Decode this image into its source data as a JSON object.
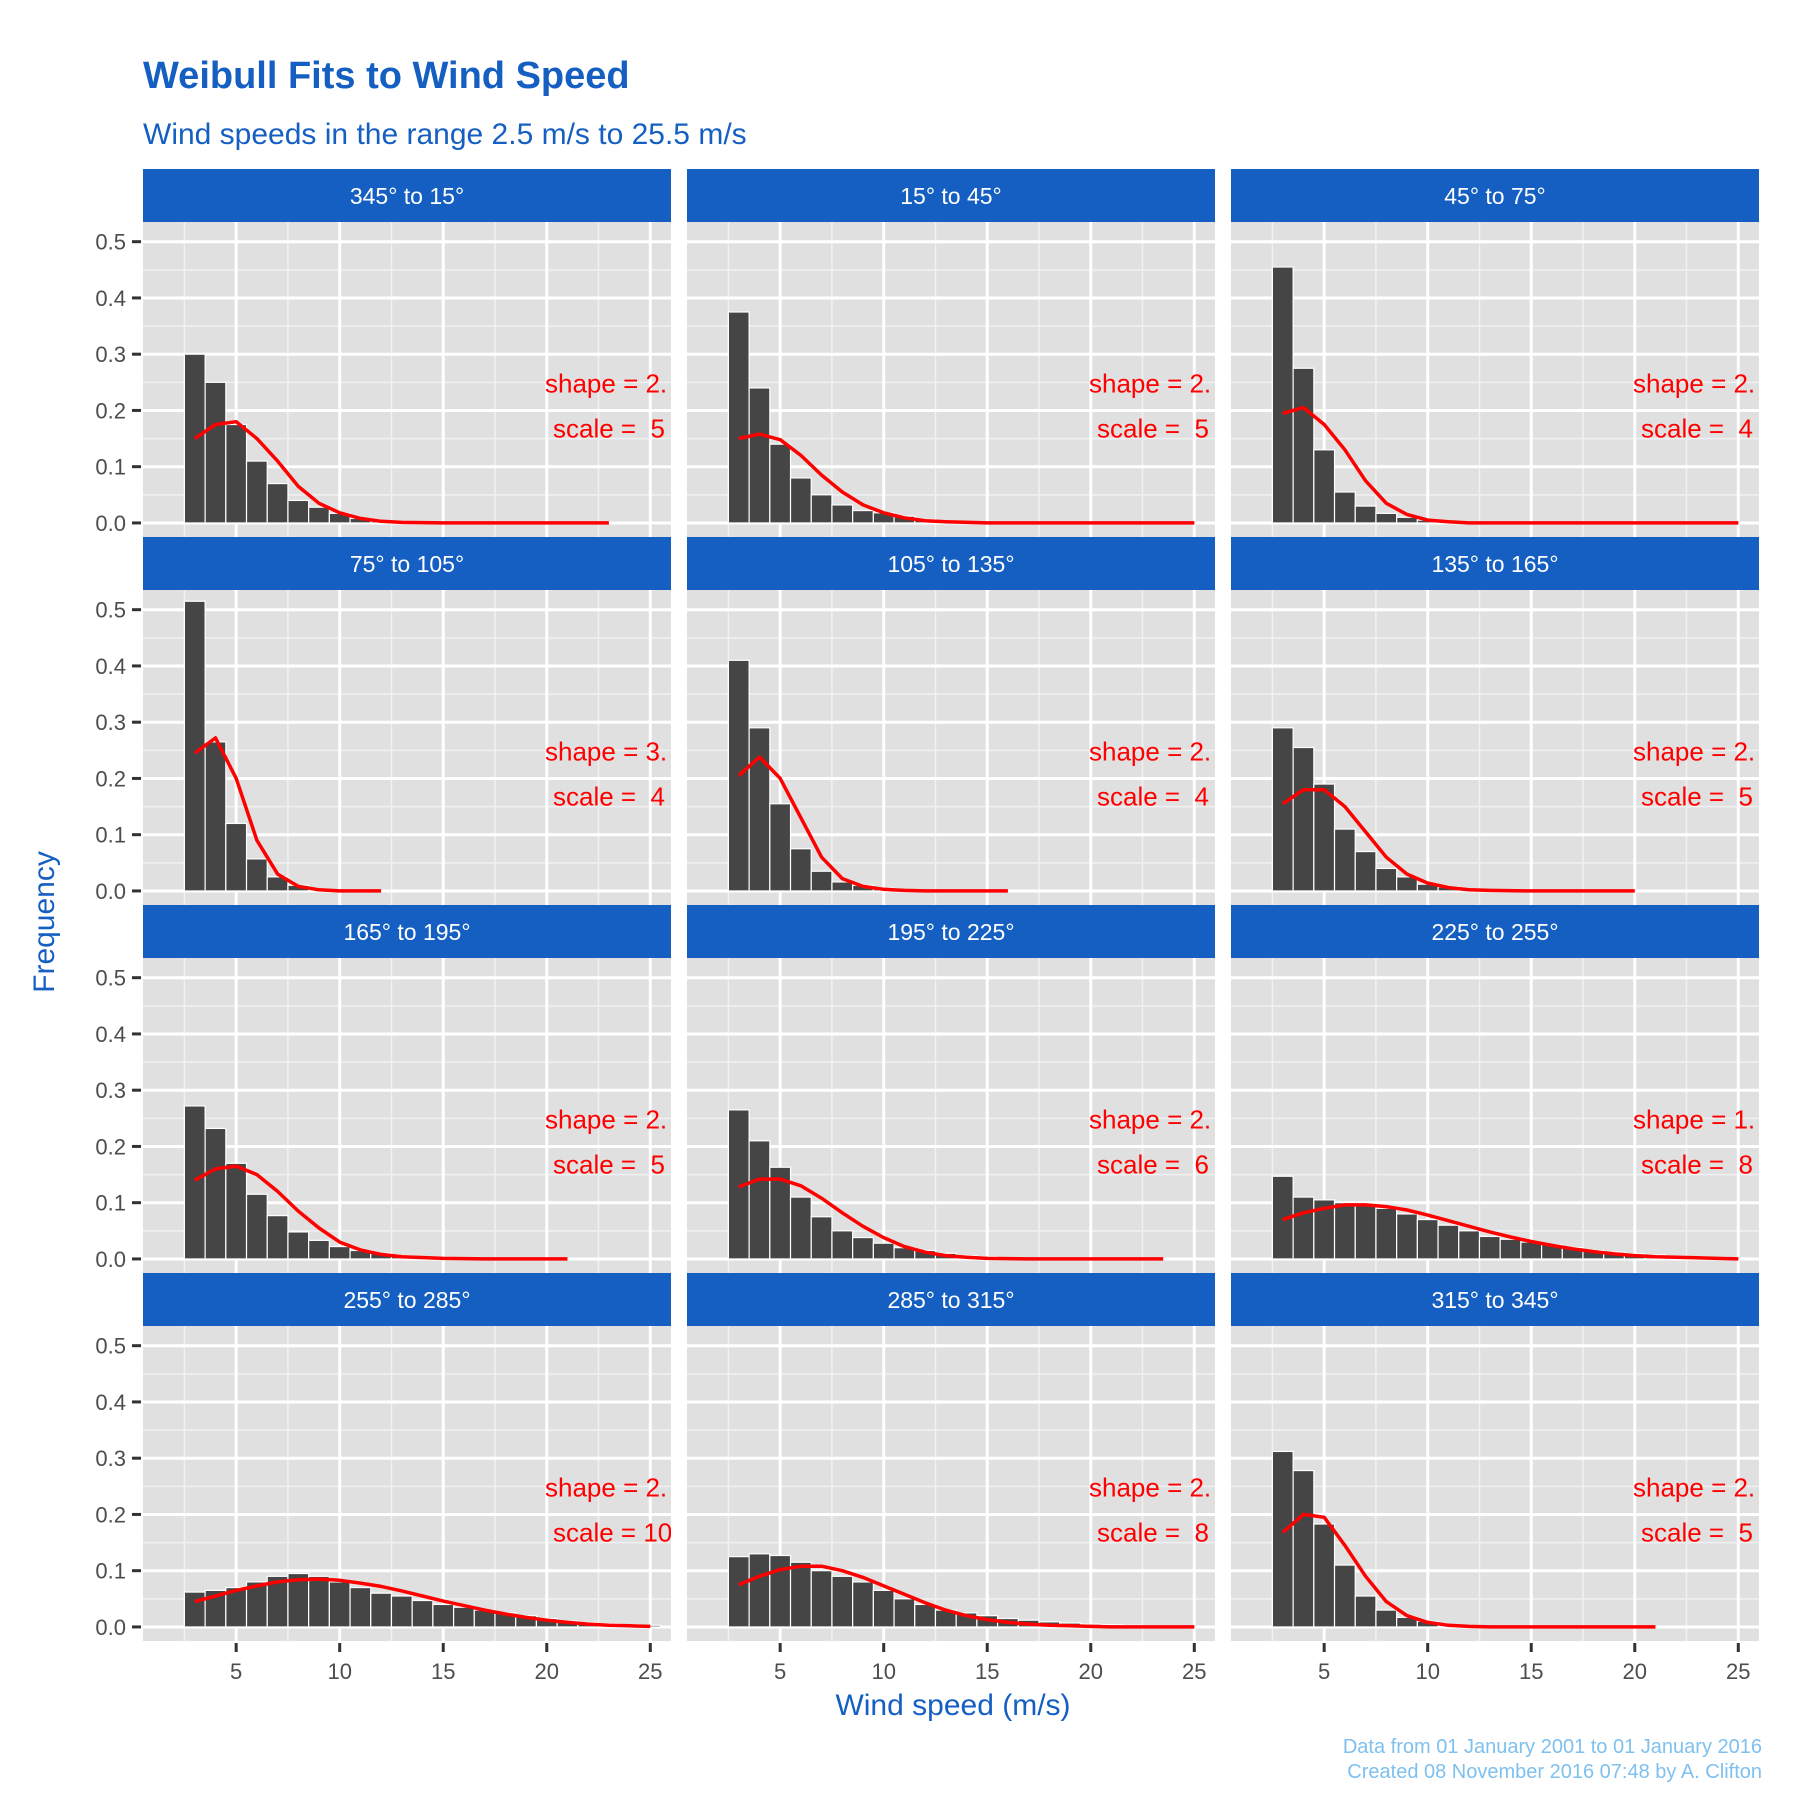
{
  "colors": {
    "accent": "#155fc2",
    "strip": "#155fc2",
    "panel": "#e0e0e0",
    "bar": "#454545",
    "fit": "#ff0000",
    "caption": "#7ec0ee"
  },
  "chart_data": {
    "type": "bar",
    "title": "Weibull Fits to Wind Speed",
    "subtitle": "Wind speeds in the range 2.5 m/s to 25.5 m/s",
    "xlabel": "Wind speed (m/s)",
    "ylabel": "Frequency",
    "xlim": [
      0.5,
      26
    ],
    "ylim": [
      -0.025,
      0.535
    ],
    "x_ticks": [
      5,
      10,
      15,
      20,
      25
    ],
    "x_tick_labels": [
      "5",
      "10",
      "15",
      "20",
      "25"
    ],
    "y_ticks": [
      0,
      0.1,
      0.2,
      0.3,
      0.4,
      0.5
    ],
    "y_tick_labels": [
      "0.0",
      "0.1",
      "0.2",
      "0.3",
      "0.4",
      "0.5"
    ],
    "grid": true,
    "legend": "none",
    "bin_width": 1,
    "caption": [
      "Data from 01 January 2001 to 01 January 2016",
      "Created 08 November 2016 07:48 by A. Clifton"
    ],
    "panels": [
      {
        "label": "345° to 15°",
        "shape_label": "shape = 2.",
        "scale_label": "scale =  5",
        "bins": [
          3,
          4,
          5,
          6,
          7,
          8,
          9,
          10,
          11,
          12
        ],
        "values": [
          0.3,
          0.25,
          0.175,
          0.11,
          0.07,
          0.04,
          0.028,
          0.017,
          0.008,
          0.003
        ],
        "fit_x": [
          3,
          4,
          5,
          6,
          7,
          8,
          9,
          10,
          11,
          12,
          13,
          15,
          17,
          19,
          21,
          23
        ],
        "fit_y": [
          0.15,
          0.175,
          0.18,
          0.15,
          0.11,
          0.065,
          0.035,
          0.018,
          0.008,
          0.003,
          0.001,
          0,
          0,
          0,
          0,
          0
        ]
      },
      {
        "label": "15° to 45°",
        "shape_label": "shape = 2.",
        "scale_label": "scale =  5",
        "bins": [
          3,
          4,
          5,
          6,
          7,
          8,
          9,
          10,
          11,
          12
        ],
        "values": [
          0.375,
          0.24,
          0.14,
          0.08,
          0.05,
          0.032,
          0.022,
          0.018,
          0.012,
          0.006
        ],
        "fit_x": [
          3,
          4,
          5,
          6,
          7,
          8,
          9,
          10,
          11,
          12,
          13,
          15,
          17,
          19,
          21,
          23,
          25
        ],
        "fit_y": [
          0.15,
          0.158,
          0.148,
          0.12,
          0.085,
          0.055,
          0.032,
          0.018,
          0.009,
          0.004,
          0.002,
          0,
          0,
          0,
          0,
          0,
          0
        ]
      },
      {
        "label": "45° to 75°",
        "shape_label": "shape = 2.",
        "scale_label": "scale =  4",
        "bins": [
          3,
          4,
          5,
          6,
          7,
          8,
          9,
          10
        ],
        "values": [
          0.455,
          0.275,
          0.13,
          0.055,
          0.03,
          0.017,
          0.01,
          0.005
        ],
        "fit_x": [
          3,
          4,
          5,
          6,
          7,
          8,
          9,
          10,
          11,
          12,
          13,
          15,
          17,
          19,
          21,
          23,
          25
        ],
        "fit_y": [
          0.195,
          0.205,
          0.175,
          0.13,
          0.075,
          0.035,
          0.015,
          0.005,
          0.002,
          0,
          0,
          0,
          0,
          0,
          0,
          0,
          0
        ]
      },
      {
        "label": "75° to 105°",
        "shape_label": "shape = 3.",
        "scale_label": "scale =  4",
        "bins": [
          3,
          4,
          5,
          6,
          7,
          8
        ],
        "values": [
          0.515,
          0.265,
          0.12,
          0.057,
          0.025,
          0.01
        ],
        "fit_x": [
          3,
          4,
          5,
          6,
          7,
          8,
          9,
          10,
          11,
          12
        ],
        "fit_y": [
          0.245,
          0.272,
          0.2,
          0.09,
          0.03,
          0.008,
          0.002,
          0,
          0,
          0
        ]
      },
      {
        "label": "105° to 135°",
        "shape_label": "shape = 2.",
        "scale_label": "scale =  4",
        "bins": [
          3,
          4,
          5,
          6,
          7,
          8,
          9,
          10
        ],
        "values": [
          0.41,
          0.29,
          0.155,
          0.075,
          0.035,
          0.016,
          0.01,
          0.005
        ],
        "fit_x": [
          3,
          4,
          5,
          6,
          7,
          8,
          9,
          10,
          11,
          12,
          13,
          14,
          15,
          16
        ],
        "fit_y": [
          0.205,
          0.238,
          0.2,
          0.13,
          0.06,
          0.022,
          0.008,
          0.003,
          0.001,
          0,
          0,
          0,
          0,
          0
        ]
      },
      {
        "label": "135° to 165°",
        "shape_label": "shape = 2.",
        "scale_label": "scale =  5",
        "bins": [
          3,
          4,
          5,
          6,
          7,
          8,
          9,
          10,
          11
        ],
        "values": [
          0.29,
          0.255,
          0.19,
          0.11,
          0.07,
          0.04,
          0.025,
          0.012,
          0.007
        ],
        "fit_x": [
          3,
          4,
          5,
          6,
          7,
          8,
          9,
          10,
          11,
          12,
          13,
          15,
          17,
          19,
          20
        ],
        "fit_y": [
          0.155,
          0.18,
          0.18,
          0.15,
          0.105,
          0.06,
          0.03,
          0.014,
          0.006,
          0.002,
          0.001,
          0,
          0,
          0,
          0
        ]
      },
      {
        "label": "165° to 195°",
        "shape_label": "shape = 2.",
        "scale_label": "scale =  5",
        "bins": [
          3,
          4,
          5,
          6,
          7,
          8,
          9,
          10,
          11,
          12,
          13,
          14
        ],
        "values": [
          0.272,
          0.232,
          0.17,
          0.115,
          0.077,
          0.048,
          0.033,
          0.022,
          0.015,
          0.01,
          0.006,
          0.003
        ],
        "fit_x": [
          3,
          4,
          5,
          6,
          7,
          8,
          9,
          10,
          11,
          12,
          13,
          15,
          17,
          19,
          21
        ],
        "fit_y": [
          0.14,
          0.16,
          0.165,
          0.15,
          0.12,
          0.085,
          0.055,
          0.03,
          0.016,
          0.008,
          0.004,
          0.001,
          0,
          0,
          0
        ]
      },
      {
        "label": "195° to 225°",
        "shape_label": "shape = 2.",
        "scale_label": "scale =  6",
        "bins": [
          3,
          4,
          5,
          6,
          7,
          8,
          9,
          10,
          11,
          12,
          13,
          14,
          15,
          16
        ],
        "values": [
          0.265,
          0.21,
          0.163,
          0.11,
          0.075,
          0.05,
          0.038,
          0.028,
          0.02,
          0.015,
          0.01,
          0.006,
          0.004,
          0.002
        ],
        "fit_x": [
          3,
          4,
          5,
          6,
          7,
          8,
          9,
          10,
          11,
          12,
          13,
          14,
          15,
          17,
          19,
          21,
          23.5
        ],
        "fit_y": [
          0.128,
          0.142,
          0.142,
          0.13,
          0.108,
          0.082,
          0.058,
          0.038,
          0.022,
          0.012,
          0.006,
          0.003,
          0.001,
          0,
          0,
          0,
          0
        ]
      },
      {
        "label": "225° to 255°",
        "shape_label": "shape = 1.",
        "scale_label": "scale =  8",
        "bins": [
          3,
          4,
          5,
          6,
          7,
          8,
          9,
          10,
          11,
          12,
          13,
          14,
          15,
          16,
          17,
          18,
          19,
          20,
          21,
          22,
          23,
          24,
          25
        ],
        "values": [
          0.147,
          0.11,
          0.105,
          0.1,
          0.095,
          0.09,
          0.08,
          0.07,
          0.06,
          0.05,
          0.04,
          0.035,
          0.03,
          0.025,
          0.02,
          0.015,
          0.012,
          0.009,
          0.007,
          0.005,
          0.004,
          0.003,
          0.002
        ],
        "fit_x": [
          3,
          4,
          5,
          6,
          7,
          8,
          9,
          10,
          11,
          12,
          13,
          14,
          15,
          16,
          17,
          18,
          19,
          20,
          21,
          22,
          23,
          24,
          25
        ],
        "fit_y": [
          0.07,
          0.082,
          0.09,
          0.096,
          0.096,
          0.093,
          0.087,
          0.078,
          0.068,
          0.058,
          0.048,
          0.039,
          0.031,
          0.024,
          0.018,
          0.013,
          0.009,
          0.006,
          0.004,
          0.003,
          0.002,
          0.001,
          0
        ]
      },
      {
        "label": "255° to 285°",
        "shape_label": "shape = 2.",
        "scale_label": "scale = 10",
        "bins": [
          3,
          4,
          5,
          6,
          7,
          8,
          9,
          10,
          11,
          12,
          13,
          14,
          15,
          16,
          17,
          18,
          19,
          20,
          21,
          22,
          23,
          24,
          25
        ],
        "values": [
          0.062,
          0.065,
          0.07,
          0.08,
          0.09,
          0.095,
          0.09,
          0.08,
          0.07,
          0.06,
          0.055,
          0.047,
          0.04,
          0.035,
          0.03,
          0.025,
          0.02,
          0.015,
          0.01,
          0.008,
          0.006,
          0.004,
          0.003
        ],
        "fit_x": [
          3,
          4,
          5,
          6,
          7,
          8,
          9,
          10,
          11,
          12,
          13,
          14,
          15,
          16,
          17,
          18,
          19,
          20,
          21,
          22,
          23,
          24,
          25
        ],
        "fit_y": [
          0.045,
          0.055,
          0.065,
          0.073,
          0.08,
          0.084,
          0.085,
          0.083,
          0.078,
          0.072,
          0.064,
          0.055,
          0.046,
          0.038,
          0.03,
          0.023,
          0.017,
          0.012,
          0.008,
          0.005,
          0.003,
          0.002,
          0.001
        ]
      },
      {
        "label": "285° to 315°",
        "shape_label": "shape = 2.",
        "scale_label": "scale =  8",
        "bins": [
          3,
          4,
          5,
          6,
          7,
          8,
          9,
          10,
          11,
          12,
          13,
          14,
          15,
          16,
          17,
          18,
          19,
          20,
          21,
          22,
          23,
          24,
          25
        ],
        "values": [
          0.125,
          0.13,
          0.127,
          0.115,
          0.1,
          0.09,
          0.08,
          0.065,
          0.05,
          0.04,
          0.03,
          0.025,
          0.02,
          0.015,
          0.012,
          0.009,
          0.007,
          0.005,
          0.004,
          0.003,
          0.002,
          0.002,
          0.001
        ],
        "fit_x": [
          3,
          4,
          5,
          6,
          7,
          8,
          9,
          10,
          11,
          12,
          13,
          14,
          15,
          16,
          17,
          18,
          19,
          20,
          21,
          22,
          23,
          24,
          25
        ],
        "fit_y": [
          0.075,
          0.09,
          0.102,
          0.108,
          0.108,
          0.1,
          0.088,
          0.073,
          0.058,
          0.043,
          0.03,
          0.02,
          0.013,
          0.008,
          0.005,
          0.003,
          0.002,
          0.001,
          0,
          0,
          0,
          0,
          0
        ]
      },
      {
        "label": "315° to 345°",
        "shape_label": "shape = 2.",
        "scale_label": "scale =  5",
        "bins": [
          3,
          4,
          5,
          6,
          7,
          8,
          9,
          10
        ],
        "values": [
          0.312,
          0.278,
          0.183,
          0.11,
          0.055,
          0.03,
          0.017,
          0.01
        ],
        "fit_x": [
          3,
          4,
          5,
          6,
          7,
          8,
          9,
          10,
          11,
          12,
          13,
          15,
          17,
          19,
          21
        ],
        "fit_y": [
          0.168,
          0.2,
          0.195,
          0.145,
          0.09,
          0.045,
          0.02,
          0.008,
          0.003,
          0.001,
          0,
          0,
          0,
          0,
          0
        ]
      }
    ]
  }
}
